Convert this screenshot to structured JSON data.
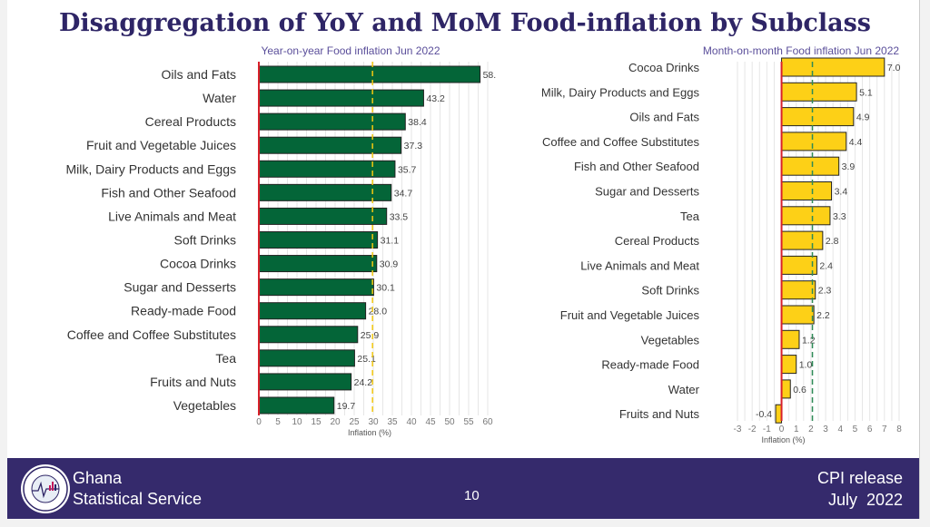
{
  "title": "Disaggregation of YoY and MoM Food-inflation by Subclass",
  "chart_data": [
    {
      "type": "bar",
      "orientation": "horizontal",
      "title": "Year-on-year Food inflation Jun 2022",
      "xlabel": "Inflation (%)",
      "xlim": [
        0,
        60
      ],
      "xticks": [
        "0",
        "5",
        "10",
        "15",
        "20",
        "25",
        "30",
        "35",
        "40",
        "45",
        "50",
        "55",
        "60"
      ],
      "reference_line": 29.8,
      "categories": [
        "Oils and Fats",
        "Water",
        "Cereal Products",
        "Fruit and Vegetable Juices",
        "Milk, Dairy Products and Eggs",
        "Fish and Other Seafood",
        "Live Animals and Meat",
        "Soft Drinks",
        "Cocoa Drinks",
        "Sugar and Desserts",
        "Ready-made Food",
        "Coffee and Coffee Substitutes",
        "Tea",
        "Fruits and Nuts",
        "Vegetables"
      ],
      "values": [
        58.0,
        43.2,
        38.4,
        37.3,
        35.7,
        34.7,
        33.5,
        31.1,
        30.9,
        30.1,
        28.0,
        25.9,
        25.1,
        24.2,
        19.7
      ],
      "labels": [
        "58.",
        "43.2",
        "38.4",
        "37.3",
        "35.7",
        "34.7",
        "33.5",
        "31.1",
        "30.9",
        "30.1",
        "28.0",
        "25.9",
        "25.1",
        "24.2",
        "19.7"
      ],
      "colors": {
        "bar": "#046538",
        "ref": "#f2c811",
        "zero": "#d9202a"
      }
    },
    {
      "type": "bar",
      "orientation": "horizontal",
      "title": "Month-on-month Food inflation Jun 2022",
      "xlabel": "Inflation (%)",
      "xlim": [
        -3,
        8
      ],
      "xticks": [
        "-3",
        "-2",
        "-1",
        "0",
        "1",
        "2",
        "3",
        "4",
        "5",
        "6",
        "7",
        "8"
      ],
      "reference_line": 2.1,
      "categories": [
        "Cocoa Drinks",
        "Milk, Dairy Products and Eggs",
        "Oils and Fats",
        "Coffee and Coffee Substitutes",
        "Fish and Other Seafood",
        "Sugar and Desserts",
        "Tea",
        "Cereal Products",
        "Live Animals and Meat",
        "Soft Drinks",
        "Fruit and Vegetable Juices",
        "Vegetables",
        "Ready-made Food",
        "Water",
        "Fruits and Nuts"
      ],
      "values": [
        7.0,
        5.1,
        4.9,
        4.4,
        3.9,
        3.4,
        3.3,
        2.8,
        2.4,
        2.3,
        2.2,
        1.2,
        1.0,
        0.6,
        -0.4
      ],
      "labels": [
        "7.0",
        "5.1",
        "4.9",
        "4.4",
        "3.9",
        "3.4",
        "3.3",
        "2.8",
        "2.4",
        "2.3",
        "2.2",
        "1.2",
        "1.0",
        "0.6",
        "-0.4"
      ],
      "colors": {
        "bar": "#fdd017",
        "ref": "#2e8b57",
        "zero": "#d9202a"
      }
    }
  ],
  "footer": {
    "org_line1": "Ghana",
    "org_line2": "Statistical Service",
    "page_number": "10",
    "release_line1": "CPI release",
    "release_line2": "July  2022",
    "logo_text": "STATISTICAL SERVICE GHANA"
  }
}
